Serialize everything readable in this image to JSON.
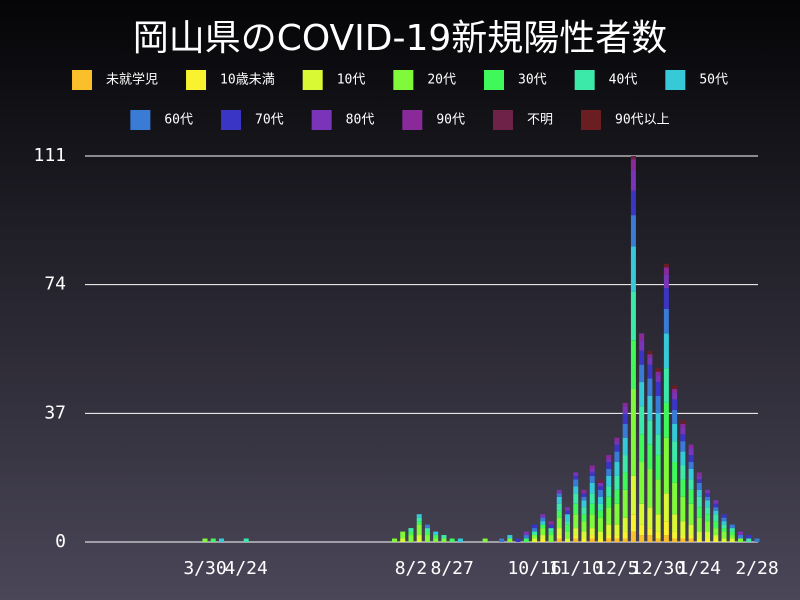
{
  "chart_data": {
    "type": "stacked_bar",
    "title": "岡山県のCOVID-19新規陽性者数",
    "categories": [
      "3/30",
      null,
      null,
      null,
      null,
      "4/24",
      null,
      null,
      null,
      null,
      null,
      null,
      null,
      null,
      null,
      null,
      null,
      null,
      null,
      null,
      null,
      null,
      null,
      null,
      null,
      "8/2",
      null,
      null,
      null,
      null,
      "8/27",
      null,
      null,
      null,
      null,
      null,
      null,
      null,
      null,
      null,
      "10/16",
      null,
      null,
      null,
      null,
      "11/10",
      null,
      null,
      null,
      null,
      "12/5",
      null,
      null,
      null,
      null,
      "12/30",
      null,
      null,
      null,
      null,
      "1/24",
      null,
      null,
      null,
      null,
      null,
      null,
      "2/28"
    ],
    "ylim": [
      0,
      111
    ],
    "yticks": [
      0,
      37,
      74,
      111
    ],
    "grid": true,
    "series": [
      {
        "name": "未就学児",
        "color": "#fbbf2b",
        "values": [
          0,
          0,
          0,
          0,
          0,
          0,
          0,
          0,
          0,
          0,
          0,
          0,
          0,
          0,
          0,
          0,
          0,
          0,
          0,
          0,
          0,
          0,
          0,
          0,
          0,
          0,
          0,
          0,
          0,
          0,
          0,
          0,
          0,
          0,
          0,
          0,
          0,
          0,
          0,
          0,
          0,
          0,
          0,
          1,
          0,
          1,
          0,
          1,
          0,
          1,
          1,
          1,
          3,
          2,
          2,
          1,
          2,
          1,
          1,
          1,
          0,
          0,
          0,
          0,
          0,
          0,
          0,
          0
        ]
      },
      {
        "name": "10歳未満",
        "color": "#f9f22e",
        "values": [
          0,
          0,
          0,
          0,
          0,
          0,
          0,
          0,
          0,
          0,
          0,
          0,
          0,
          0,
          0,
          0,
          0,
          0,
          0,
          0,
          0,
          0,
          0,
          0,
          0,
          0,
          0,
          0,
          0,
          0,
          0,
          0,
          0,
          0,
          0,
          0,
          0,
          0,
          0,
          0,
          0,
          1,
          0,
          1,
          0,
          1,
          1,
          1,
          1,
          1,
          1,
          2,
          5,
          3,
          2,
          2,
          4,
          2,
          1,
          1,
          1,
          1,
          1,
          0,
          0,
          0,
          0,
          0
        ]
      },
      {
        "name": "10代",
        "color": "#d8f934",
        "values": [
          0,
          0,
          0,
          0,
          0,
          0,
          0,
          0,
          0,
          0,
          0,
          0,
          0,
          0,
          0,
          0,
          0,
          0,
          0,
          0,
          0,
          0,
          0,
          0,
          1,
          0,
          2,
          0,
          0,
          0,
          0,
          0,
          0,
          0,
          0,
          0,
          0,
          0,
          0,
          0,
          1,
          1,
          0,
          2,
          1,
          2,
          2,
          2,
          2,
          3,
          3,
          4,
          11,
          6,
          6,
          5,
          8,
          5,
          4,
          3,
          2,
          2,
          1,
          1,
          1,
          0,
          0,
          0
        ]
      },
      {
        "name": "20代",
        "color": "#7ff93a",
        "values": [
          1,
          0,
          0,
          0,
          0,
          0,
          0,
          0,
          0,
          0,
          0,
          0,
          0,
          0,
          0,
          0,
          0,
          0,
          0,
          0,
          0,
          0,
          0,
          1,
          2,
          2,
          3,
          2,
          1,
          1,
          0,
          0,
          0,
          0,
          1,
          0,
          0,
          1,
          0,
          0,
          1,
          2,
          2,
          3,
          2,
          4,
          3,
          4,
          4,
          5,
          6,
          8,
          25,
          12,
          11,
          10,
          16,
          9,
          7,
          6,
          4,
          3,
          2,
          2,
          1,
          1,
          0,
          0
        ]
      },
      {
        "name": "30代",
        "color": "#3ff85a",
        "values": [
          0,
          1,
          0,
          0,
          0,
          0,
          0,
          0,
          0,
          0,
          0,
          0,
          0,
          0,
          0,
          0,
          0,
          0,
          0,
          0,
          0,
          0,
          0,
          0,
          0,
          1,
          1,
          1,
          1,
          0,
          1,
          0,
          0,
          0,
          0,
          0,
          0,
          0,
          0,
          1,
          0,
          1,
          1,
          2,
          2,
          3,
          2,
          3,
          2,
          3,
          4,
          5,
          14,
          8,
          7,
          7,
          10,
          6,
          5,
          4,
          3,
          2,
          2,
          1,
          1,
          0,
          0,
          0
        ]
      },
      {
        "name": "40代",
        "color": "#3de9a8",
        "values": [
          0,
          0,
          0,
          0,
          0,
          1,
          0,
          0,
          0,
          0,
          0,
          0,
          0,
          0,
          0,
          0,
          0,
          0,
          0,
          0,
          0,
          0,
          0,
          0,
          0,
          1,
          1,
          1,
          0,
          1,
          0,
          0,
          0,
          0,
          0,
          0,
          0,
          0,
          0,
          0,
          1,
          0,
          1,
          2,
          1,
          3,
          2,
          3,
          2,
          3,
          4,
          5,
          14,
          8,
          7,
          6,
          10,
          6,
          4,
          3,
          3,
          2,
          2,
          1,
          1,
          0,
          1,
          0
        ]
      },
      {
        "name": "50代",
        "color": "#36c9d8",
        "values": [
          0,
          0,
          1,
          0,
          0,
          0,
          0,
          0,
          0,
          0,
          0,
          0,
          0,
          0,
          0,
          0,
          0,
          0,
          0,
          0,
          0,
          0,
          0,
          0,
          0,
          0,
          1,
          0,
          1,
          0,
          0,
          1,
          0,
          0,
          0,
          0,
          0,
          1,
          0,
          0,
          0,
          1,
          0,
          2,
          2,
          2,
          2,
          3,
          2,
          3,
          4,
          5,
          13,
          7,
          7,
          6,
          10,
          5,
          4,
          3,
          2,
          2,
          1,
          1,
          0,
          0,
          0,
          0
        ]
      },
      {
        "name": "60代",
        "color": "#3a7bd6",
        "values": [
          0,
          0,
          0,
          0,
          0,
          0,
          0,
          0,
          0,
          0,
          0,
          0,
          0,
          0,
          0,
          0,
          0,
          0,
          0,
          0,
          0,
          0,
          0,
          0,
          0,
          0,
          0,
          1,
          0,
          0,
          0,
          0,
          0,
          0,
          0,
          0,
          1,
          0,
          0,
          1,
          1,
          1,
          0,
          1,
          0,
          2,
          1,
          2,
          2,
          2,
          3,
          4,
          9,
          5,
          5,
          5,
          7,
          4,
          3,
          2,
          2,
          1,
          1,
          1,
          1,
          1,
          0,
          1
        ]
      },
      {
        "name": "70代",
        "color": "#3a35c4",
        "values": [
          0,
          0,
          0,
          0,
          0,
          0,
          0,
          0,
          0,
          0,
          0,
          0,
          0,
          0,
          0,
          0,
          0,
          0,
          0,
          0,
          0,
          0,
          0,
          0,
          0,
          0,
          0,
          0,
          0,
          0,
          0,
          0,
          0,
          0,
          0,
          0,
          0,
          0,
          1,
          0,
          1,
          0,
          1,
          0,
          1,
          1,
          1,
          1,
          1,
          2,
          2,
          3,
          7,
          4,
          4,
          4,
          6,
          3,
          2,
          2,
          1,
          1,
          1,
          1,
          0,
          0,
          1,
          0
        ]
      },
      {
        "name": "80代",
        "color": "#7a34b8",
        "values": [
          0,
          0,
          0,
          0,
          0,
          0,
          0,
          0,
          0,
          0,
          0,
          0,
          0,
          0,
          0,
          0,
          0,
          0,
          0,
          0,
          0,
          0,
          0,
          0,
          0,
          0,
          0,
          0,
          0,
          0,
          0,
          0,
          0,
          0,
          0,
          0,
          0,
          0,
          0,
          1,
          0,
          1,
          0,
          1,
          1,
          1,
          0,
          1,
          1,
          1,
          1,
          2,
          6,
          3,
          2,
          2,
          4,
          2,
          2,
          2,
          1,
          1,
          1,
          0,
          0,
          1,
          0,
          0
        ]
      },
      {
        "name": "90代",
        "color": "#8a2a9a",
        "values": [
          0,
          0,
          0,
          0,
          0,
          0,
          0,
          0,
          0,
          0,
          0,
          0,
          0,
          0,
          0,
          0,
          0,
          0,
          0,
          0,
          0,
          0,
          0,
          0,
          0,
          0,
          0,
          0,
          0,
          0,
          0,
          0,
          0,
          0,
          0,
          0,
          0,
          0,
          0,
          0,
          0,
          0,
          1,
          0,
          0,
          0,
          1,
          1,
          0,
          1,
          1,
          1,
          3,
          2,
          1,
          1,
          2,
          1,
          1,
          1,
          1,
          0,
          0,
          0,
          0,
          0,
          0,
          0
        ]
      },
      {
        "name": "不明",
        "color": "#6e2248",
        "values": [
          0,
          0,
          0,
          0,
          0,
          0,
          0,
          0,
          0,
          0,
          0,
          0,
          0,
          0,
          0,
          0,
          0,
          0,
          0,
          0,
          0,
          0,
          0,
          0,
          0,
          0,
          0,
          0,
          0,
          0,
          0,
          0,
          0,
          0,
          0,
          0,
          0,
          0,
          0,
          0,
          0,
          0,
          0,
          0,
          0,
          0,
          0,
          0,
          1,
          0,
          0,
          0,
          1,
          0,
          0,
          0,
          0,
          0,
          0,
          0,
          0,
          0,
          0,
          0,
          0,
          0,
          0,
          0
        ]
      },
      {
        "name": "90代以上",
        "color": "#6a1e22",
        "values": [
          0,
          0,
          0,
          0,
          0,
          0,
          0,
          0,
          0,
          0,
          0,
          0,
          0,
          0,
          0,
          0,
          0,
          0,
          0,
          0,
          0,
          0,
          0,
          0,
          0,
          0,
          0,
          0,
          0,
          0,
          0,
          0,
          0,
          0,
          0,
          0,
          0,
          0,
          0,
          0,
          0,
          0,
          0,
          0,
          0,
          0,
          0,
          0,
          0,
          0,
          0,
          0,
          0,
          0,
          1,
          1,
          1,
          1,
          1,
          0,
          0,
          0,
          0,
          0,
          0,
          0,
          0,
          0
        ]
      }
    ]
  }
}
